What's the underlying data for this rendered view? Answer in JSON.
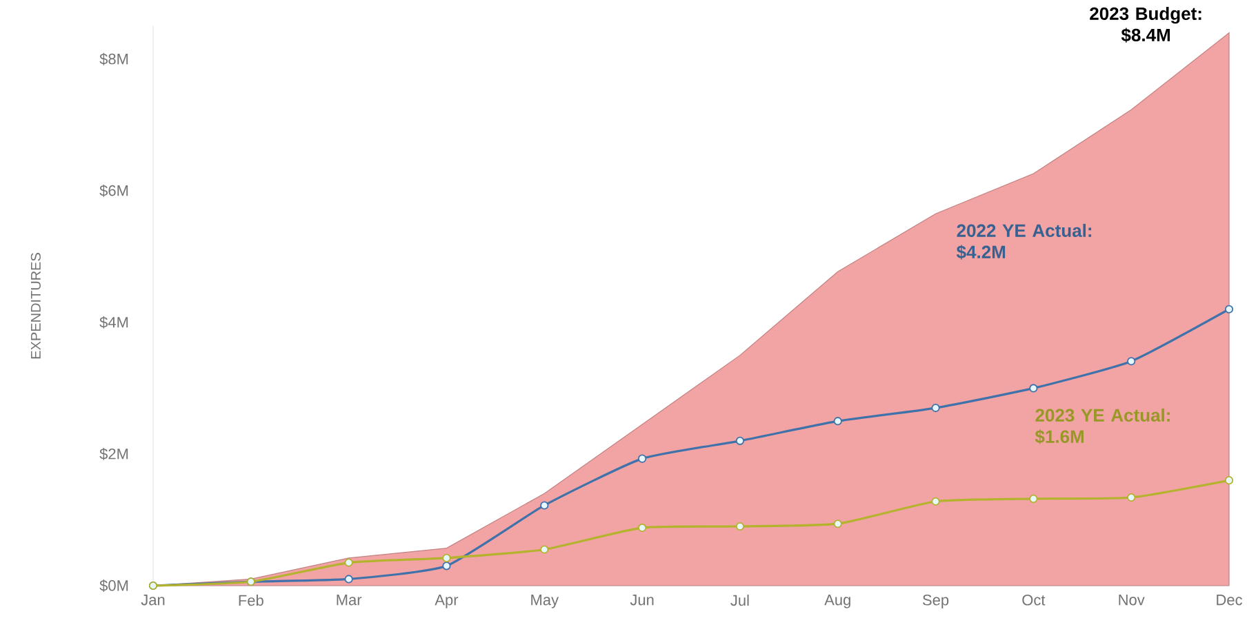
{
  "chart_data": {
    "type": "line",
    "ylabel": "EXPENDITURES",
    "categories": [
      "Jan",
      "Feb",
      "Mar",
      "Apr",
      "May",
      "Jun",
      "Jul",
      "Aug",
      "Sep",
      "Oct",
      "Nov",
      "Dec"
    ],
    "series": [
      {
        "type": "area",
        "color": "#f2a3a3",
        "marker": "none",
        "values": [
          0,
          0.1,
          0.42,
          0.57,
          1.4,
          2.45,
          3.5,
          4.77,
          5.65,
          6.26,
          7.23,
          8.4
        ]
      },
      {
        "type": "line",
        "color": "#3f72ab",
        "marker": "circle",
        "values": [
          0,
          0.06,
          0.1,
          0.3,
          1.22,
          1.93,
          2.2,
          2.5,
          2.7,
          3.0,
          3.41,
          4.2
        ]
      },
      {
        "type": "line",
        "color": "#b3b32e",
        "marker": "circle",
        "values": [
          0,
          0.06,
          0.35,
          0.42,
          0.55,
          0.88,
          0.9,
          0.94,
          1.28,
          1.32,
          1.34,
          1.6
        ]
      }
    ],
    "ylim": [
      0,
      8.5
    ],
    "yticks": [
      {
        "value": 0,
        "label": "$0M"
      },
      {
        "value": 2,
        "label": "$2M"
      },
      {
        "value": 4,
        "label": "$4M"
      },
      {
        "value": 6,
        "label": "$6M"
      },
      {
        "value": 8,
        "label": "$8M"
      }
    ],
    "annotations": [
      {
        "text": "2023 Budget: $8.4M",
        "x": "Dec",
        "y": 8.4
      },
      "2022 YE Actual: $4.2M",
      "2023 YE Actual: $1.6M"
    ],
    "grid": false
  }
}
